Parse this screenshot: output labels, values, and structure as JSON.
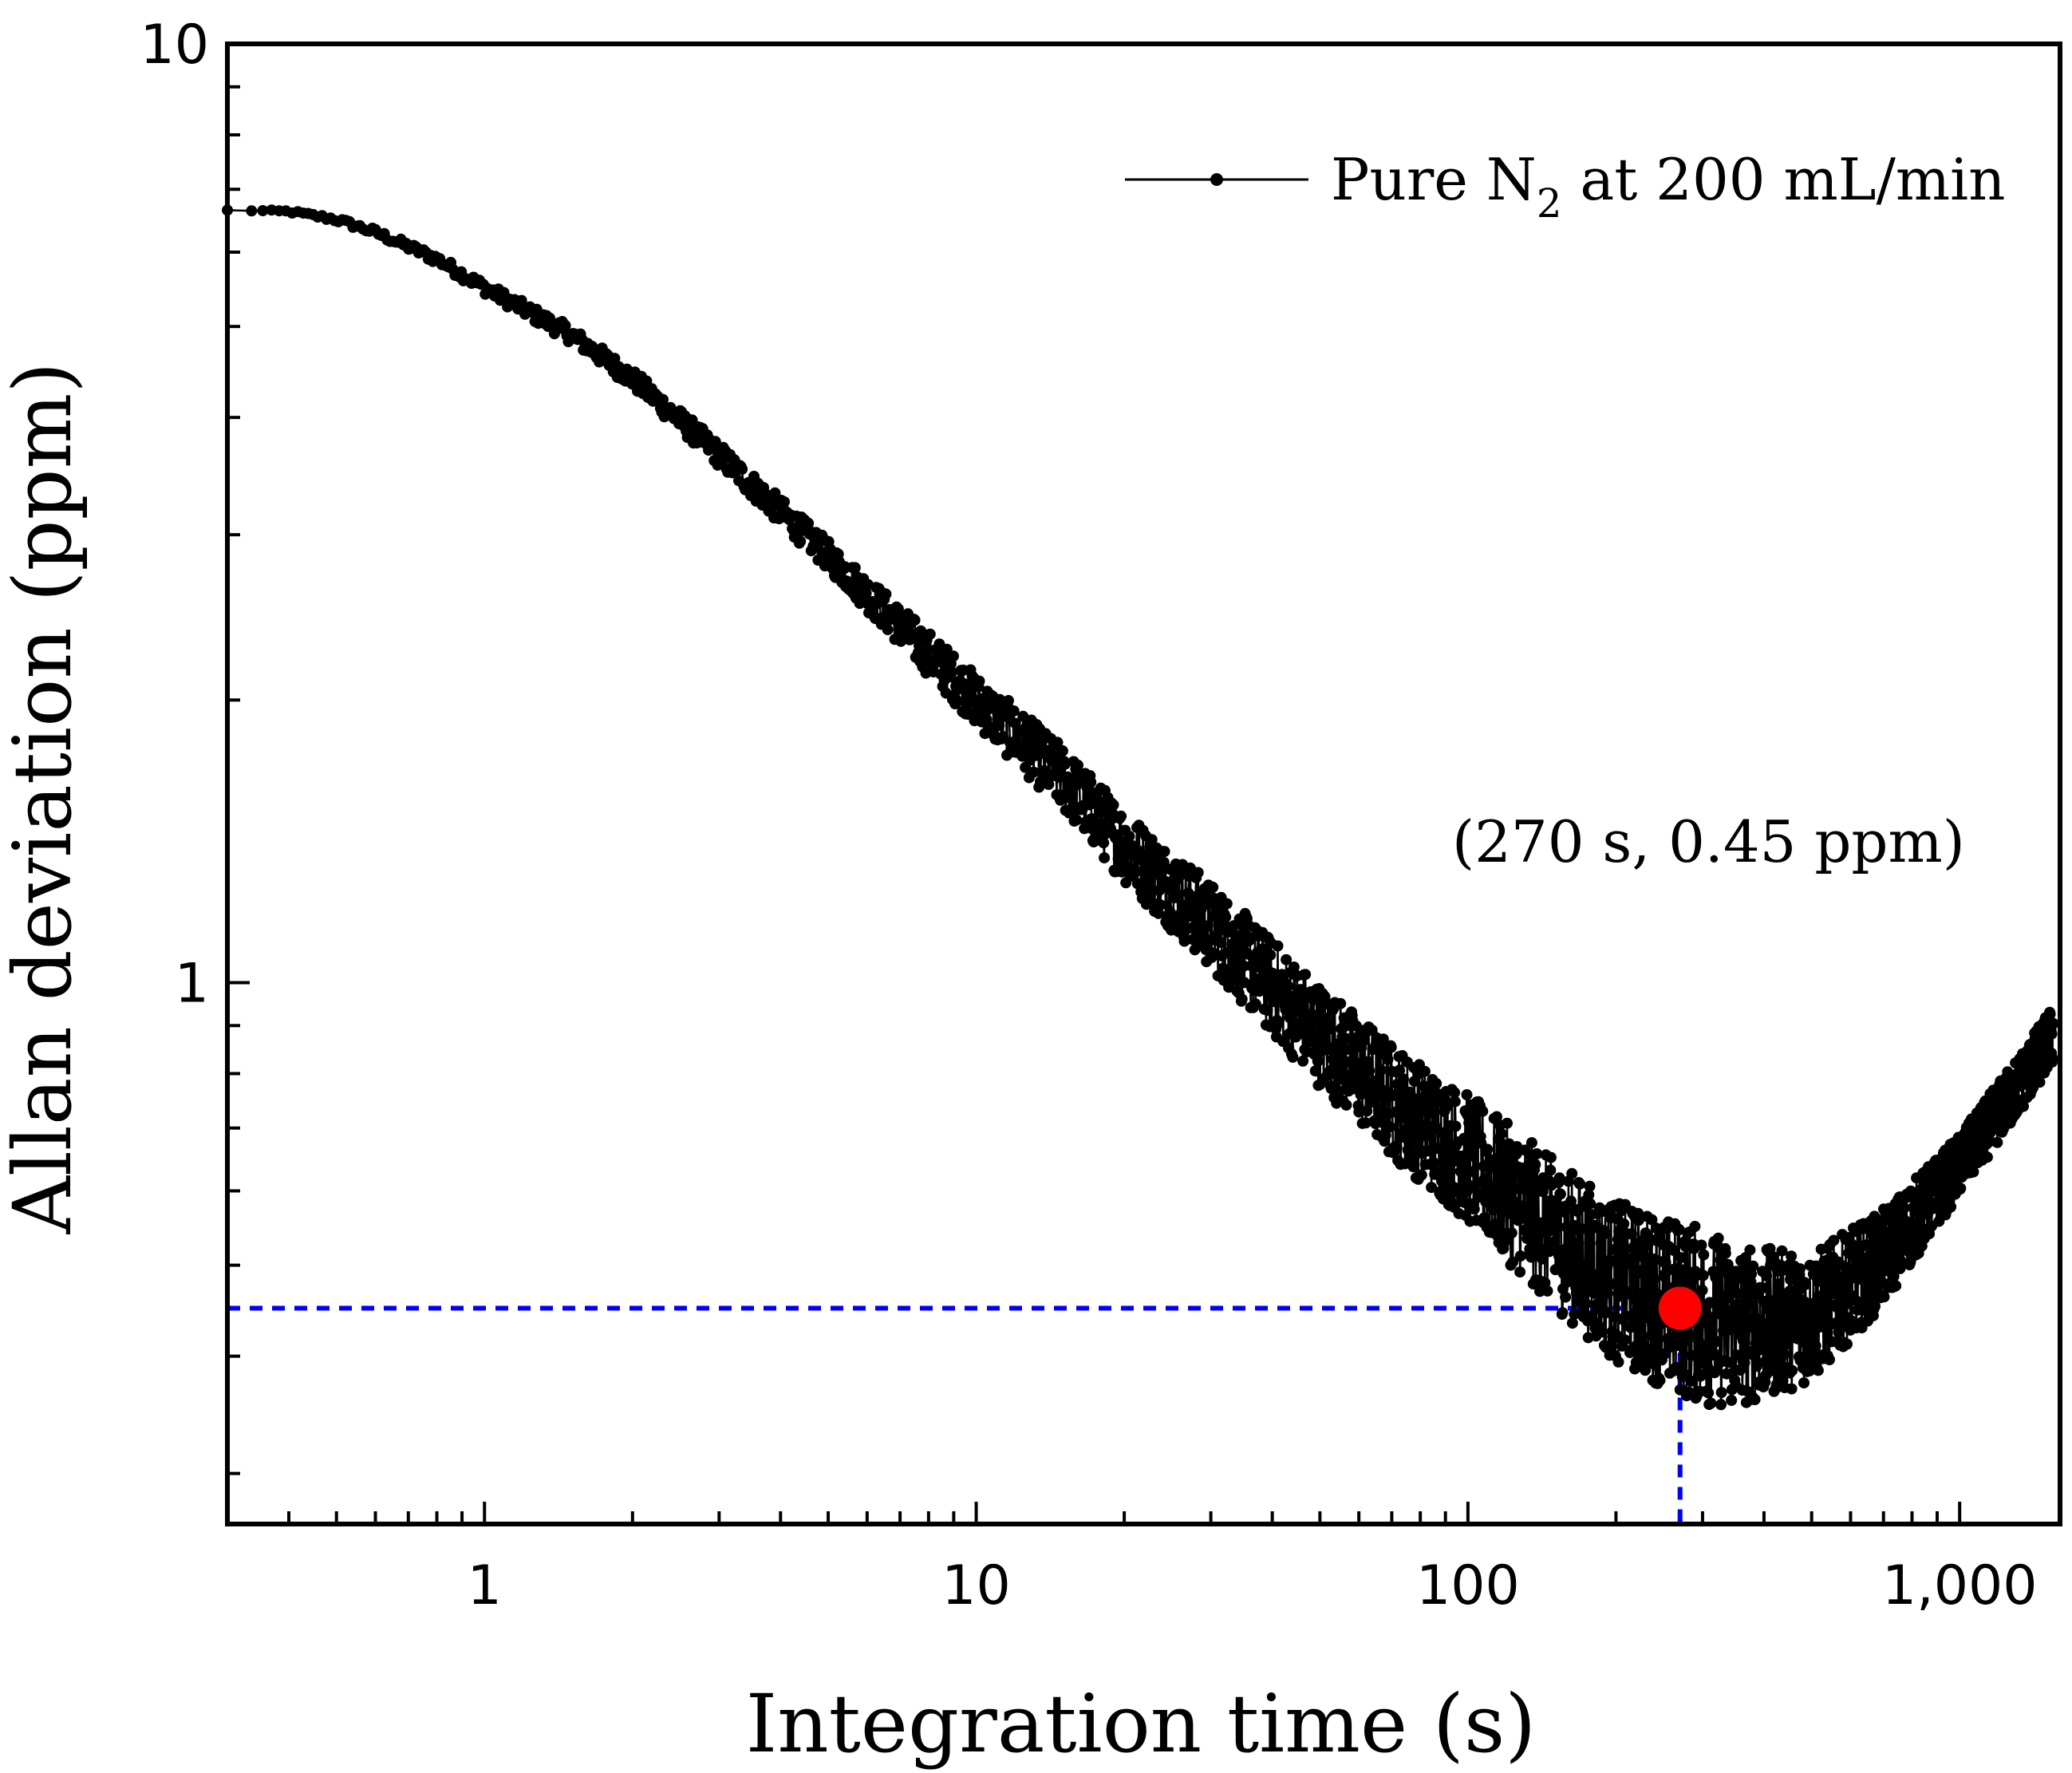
{
  "chart_data": {
    "type": "line",
    "title": "",
    "xlabel": "Integration time (s)",
    "ylabel": "Allan deviation (ppm)",
    "xscale": "log",
    "yscale": "log",
    "xlim": [
      0.3,
      1600
    ],
    "ylim": [
      0.265,
      10
    ],
    "x_ticks": [
      {
        "value": 1,
        "label": "1"
      },
      {
        "value": 10,
        "label": "10"
      },
      {
        "value": 100,
        "label": "100"
      },
      {
        "value": 1000,
        "label": "1,000"
      }
    ],
    "y_ticks": [
      {
        "value": 1,
        "label": "1"
      },
      {
        "value": 10,
        "label": "10"
      }
    ],
    "legend": {
      "position": "top-right",
      "entries": [
        {
          "label_main": "Pure N",
          "label_sub": "2",
          "label_rest": " at 200 mL/min"
        }
      ]
    },
    "series": [
      {
        "name": "Pure N2 at 200 mL/min",
        "color": "#000000",
        "noise_amplitude": [
          {
            "x": 5,
            "amp": 0.01
          },
          {
            "x": 20,
            "amp": 0.025
          },
          {
            "x": 80,
            "amp": 0.04
          },
          {
            "x": 300,
            "amp": 0.06
          },
          {
            "x": 1000,
            "amp": 0.02
          }
        ],
        "trend": [
          {
            "x": 0.3,
            "y": 6.65
          },
          {
            "x": 0.4,
            "y": 6.63
          },
          {
            "x": 0.5,
            "y": 6.5
          },
          {
            "x": 0.6,
            "y": 6.3
          },
          {
            "x": 0.8,
            "y": 5.9
          },
          {
            "x": 1,
            "y": 5.5
          },
          {
            "x": 1.5,
            "y": 4.9
          },
          {
            "x": 2,
            "y": 4.4
          },
          {
            "x": 3,
            "y": 3.65
          },
          {
            "x": 5,
            "y": 2.85
          },
          {
            "x": 7,
            "y": 2.4
          },
          {
            "x": 10,
            "y": 2.0
          },
          {
            "x": 15,
            "y": 1.65
          },
          {
            "x": 20,
            "y": 1.4
          },
          {
            "x": 30,
            "y": 1.15
          },
          {
            "x": 50,
            "y": 0.88
          },
          {
            "x": 70,
            "y": 0.75
          },
          {
            "x": 100,
            "y": 0.65
          },
          {
            "x": 150,
            "y": 0.54
          },
          {
            "x": 200,
            "y": 0.48
          },
          {
            "x": 270,
            "y": 0.45
          },
          {
            "x": 350,
            "y": 0.43
          },
          {
            "x": 500,
            "y": 0.44
          },
          {
            "x": 700,
            "y": 0.51
          },
          {
            "x": 1000,
            "y": 0.64
          },
          {
            "x": 1300,
            "y": 0.77
          },
          {
            "x": 1550,
            "y": 0.88
          }
        ]
      }
    ],
    "highlight_point": {
      "x": 270,
      "y": 0.45,
      "color": "#ff0000"
    },
    "reference_lines": {
      "color": "#0000ff",
      "style": "dashed",
      "x": 270,
      "y": 0.45
    },
    "annotation": "(270 s, 0.45 ppm)"
  }
}
